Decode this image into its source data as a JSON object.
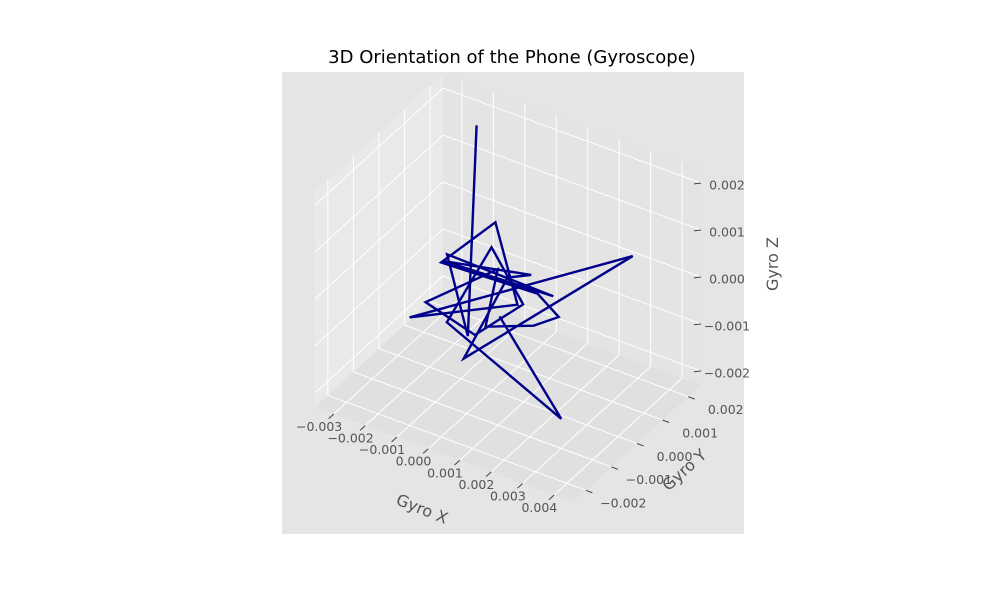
{
  "chart_data": {
    "type": "line",
    "projection": "3d",
    "title": "3D Orientation of the Phone (Gyroscope)",
    "xlabel": "Gyro X",
    "ylabel": "Gyro Y",
    "zlabel": "Gyro Z",
    "xlim": [
      -0.0036,
      0.0046
    ],
    "ylim": [
      -0.0025,
      0.0025
    ],
    "zlim": [
      -0.0023,
      0.0023
    ],
    "x_ticks": [
      "−0.003",
      "−0.002",
      "−0.001",
      "0.000",
      "0.001",
      "0.002",
      "0.003",
      "0.004"
    ],
    "y_ticks": [
      "−0.002",
      "−0.001",
      "0.000",
      "0.001",
      "0.002"
    ],
    "z_ticks": [
      "0.002",
      "0.001",
      "0.000",
      "−0.001",
      "−0.002"
    ],
    "grid": true,
    "background": "#e5e5e5",
    "series": [
      {
        "color": "#00008b",
        "x": [
          -0.0018,
          0.0002,
          -0.0016,
          0.0008,
          -0.0008,
          0.0014,
          0.0,
          -0.0005,
          0.003,
          -0.001,
          -0.0005,
          0.0001,
          -0.0013,
          0.0012,
          0.0026,
          0.0005,
          0.0006,
          0.0005,
          -0.0009,
          0.0001,
          0.0009,
          -0.001,
          -0.0012,
          0.0039,
          -0.0005
        ],
        "y": [
          0.0016,
          -0.0012,
          0.0002,
          0.0014,
          -0.0009,
          -0.0002,
          0.0006,
          -0.0005,
          0.0018,
          -0.002,
          0.0016,
          0.0,
          -0.0004,
          0.0003,
          -0.0006,
          0.001,
          -0.001,
          -0.0004,
          -0.0015,
          -0.0008,
          0.0001,
          0.0012,
          -0.0003,
          -0.0021,
          0.0009
        ],
        "z": [
          0.0021,
          -0.0005,
          0.0001,
          -0.0008,
          0.0007,
          0.0006,
          -0.0002,
          -0.0015,
          0.0004,
          0.0,
          -0.0014,
          0.0013,
          0.0003,
          -0.0001,
          0.0002,
          -0.0013,
          -0.0003,
          0.0006,
          0.0001,
          -0.0007,
          -0.0003,
          -0.0001,
          -0.001,
          -0.0009,
          -0.0013
        ]
      }
    ]
  }
}
